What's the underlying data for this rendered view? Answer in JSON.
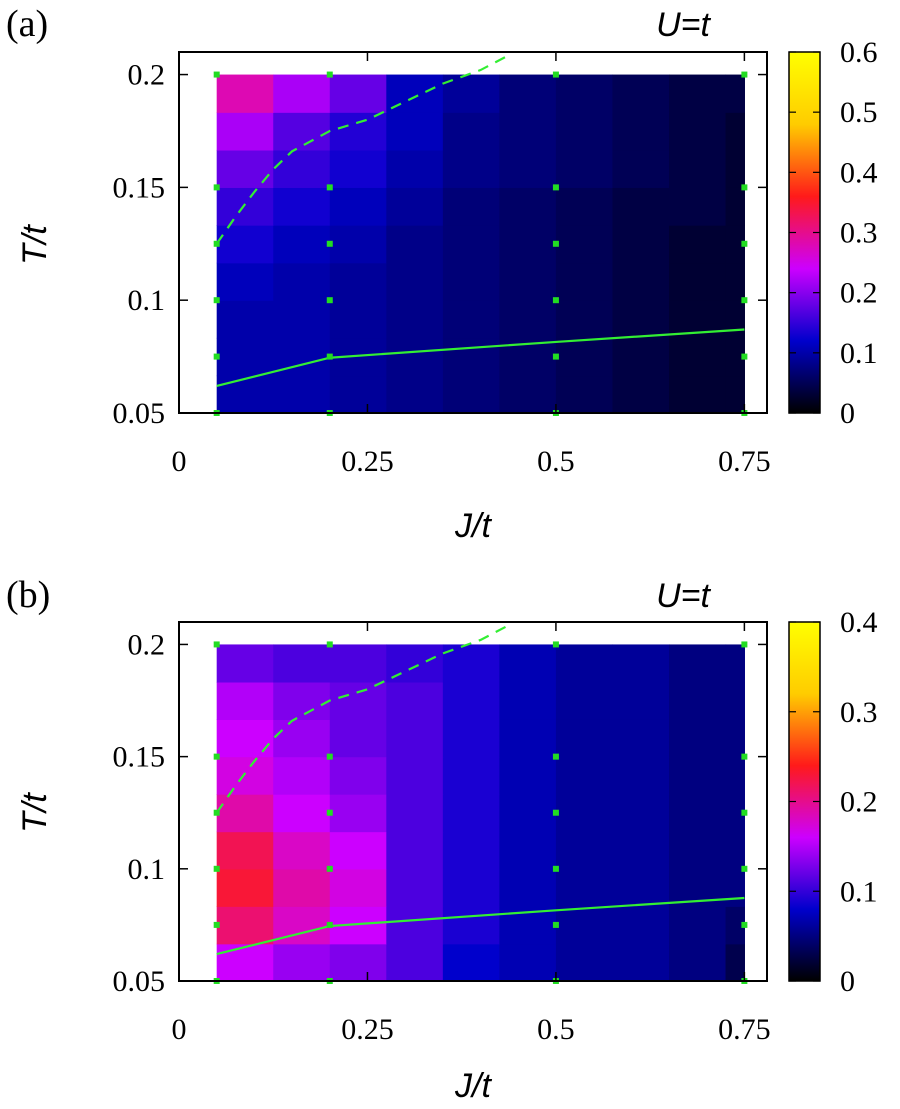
{
  "chart_data": [
    {
      "type": "heatmap",
      "panel_label": "(a)",
      "title": "U=t",
      "xlabel": "J/t",
      "ylabel": "T/t",
      "xlim": [
        0,
        0.78
      ],
      "ylim": [
        0.05,
        0.21
      ],
      "x_ticks": [
        "0",
        "0.25",
        "0.5",
        "0.75"
      ],
      "x_tick_values": [
        0,
        0.25,
        0.5,
        0.75
      ],
      "y_ticks": [
        "0.05",
        "0.1",
        "0.15",
        "0.2"
      ],
      "y_tick_values": [
        0.05,
        0.1,
        0.15,
        0.2
      ],
      "colorbar": {
        "range": [
          0,
          0.6
        ],
        "ticks": [
          "0",
          "0.1",
          "0.2",
          "0.3",
          "0.4",
          "0.5",
          "0.6"
        ],
        "tick_values": [
          0,
          0.1,
          0.2,
          0.3,
          0.4,
          0.5,
          0.6
        ]
      },
      "grid_x_edges": [
        0.05,
        0.125,
        0.2,
        0.275,
        0.35,
        0.425,
        0.5,
        0.575,
        0.65,
        0.725,
        0.75
      ],
      "grid_y_edges": [
        0.05,
        0.0666,
        0.0833,
        0.1,
        0.1166,
        0.1333,
        0.15,
        0.1666,
        0.1833,
        0.2
      ],
      "values": [
        [
          0.1,
          0.1,
          0.09,
          0.08,
          0.07,
          0.06,
          0.05,
          0.04,
          0.03,
          0.03
        ],
        [
          0.1,
          0.1,
          0.09,
          0.08,
          0.07,
          0.06,
          0.05,
          0.04,
          0.03,
          0.03
        ],
        [
          0.1,
          0.1,
          0.09,
          0.08,
          0.07,
          0.06,
          0.05,
          0.04,
          0.03,
          0.03
        ],
        [
          0.11,
          0.1,
          0.09,
          0.08,
          0.07,
          0.06,
          0.05,
          0.04,
          0.03,
          0.03
        ],
        [
          0.13,
          0.11,
          0.1,
          0.08,
          0.07,
          0.06,
          0.05,
          0.04,
          0.03,
          0.03
        ],
        [
          0.15,
          0.13,
          0.11,
          0.09,
          0.07,
          0.06,
          0.05,
          0.04,
          0.04,
          0.03
        ],
        [
          0.18,
          0.15,
          0.13,
          0.1,
          0.08,
          0.07,
          0.06,
          0.05,
          0.04,
          0.03
        ],
        [
          0.22,
          0.17,
          0.14,
          0.11,
          0.08,
          0.07,
          0.06,
          0.05,
          0.04,
          0.03
        ],
        [
          0.28,
          0.22,
          0.18,
          0.11,
          0.09,
          0.07,
          0.06,
          0.05,
          0.04,
          0.04
        ]
      ],
      "sample_points": {
        "x": [
          0.05,
          0.2,
          0.5,
          0.75
        ],
        "y": [
          0.05,
          0.075,
          0.1,
          0.125,
          0.15,
          0.2
        ]
      },
      "lines": [
        {
          "style": "solid",
          "x": [
            0.05,
            0.2,
            0.5,
            0.75
          ],
          "y": [
            0.062,
            0.0745,
            0.0815,
            0.087
          ]
        },
        {
          "style": "dashed",
          "x": [
            0.05,
            0.075,
            0.1,
            0.125,
            0.15,
            0.2,
            0.25,
            0.3,
            0.35,
            0.4,
            0.44
          ],
          "y": [
            0.125,
            0.137,
            0.148,
            0.158,
            0.166,
            0.175,
            0.18,
            0.188,
            0.196,
            0.202,
            0.209
          ]
        }
      ]
    },
    {
      "type": "heatmap",
      "panel_label": "(b)",
      "title": "U=t",
      "xlabel": "J/t",
      "ylabel": "T/t",
      "xlim": [
        0,
        0.78
      ],
      "ylim": [
        0.05,
        0.21
      ],
      "x_ticks": [
        "0",
        "0.25",
        "0.5",
        "0.75"
      ],
      "x_tick_values": [
        0,
        0.25,
        0.5,
        0.75
      ],
      "y_ticks": [
        "0.05",
        "0.1",
        "0.15",
        "0.2"
      ],
      "y_tick_values": [
        0.05,
        0.1,
        0.15,
        0.2
      ],
      "colorbar": {
        "range": [
          0,
          0.4
        ],
        "ticks": [
          "0",
          "0.1",
          "0.2",
          "0.3",
          "0.4"
        ],
        "tick_values": [
          0,
          0.1,
          0.2,
          0.3,
          0.4
        ]
      },
      "grid_x_edges": [
        0.05,
        0.125,
        0.2,
        0.275,
        0.35,
        0.425,
        0.5,
        0.575,
        0.65,
        0.725,
        0.75
      ],
      "grid_y_edges": [
        0.05,
        0.0666,
        0.0833,
        0.1,
        0.1166,
        0.1333,
        0.15,
        0.1666,
        0.1833,
        0.2
      ],
      "values": [
        [
          0.16,
          0.14,
          0.13,
          0.11,
          0.08,
          0.07,
          0.06,
          0.06,
          0.05,
          0.03
        ],
        [
          0.21,
          0.18,
          0.16,
          0.11,
          0.09,
          0.07,
          0.06,
          0.06,
          0.05,
          0.04
        ],
        [
          0.23,
          0.19,
          0.17,
          0.11,
          0.09,
          0.07,
          0.06,
          0.06,
          0.05,
          0.05
        ],
        [
          0.22,
          0.18,
          0.16,
          0.11,
          0.09,
          0.07,
          0.06,
          0.06,
          0.05,
          0.05
        ],
        [
          0.19,
          0.16,
          0.14,
          0.11,
          0.09,
          0.07,
          0.06,
          0.06,
          0.05,
          0.05
        ],
        [
          0.17,
          0.15,
          0.13,
          0.11,
          0.09,
          0.07,
          0.06,
          0.06,
          0.05,
          0.05
        ],
        [
          0.16,
          0.14,
          0.12,
          0.11,
          0.09,
          0.07,
          0.06,
          0.06,
          0.05,
          0.05
        ],
        [
          0.15,
          0.13,
          0.12,
          0.11,
          0.09,
          0.07,
          0.06,
          0.06,
          0.05,
          0.05
        ],
        [
          0.12,
          0.11,
          0.11,
          0.1,
          0.09,
          0.07,
          0.06,
          0.06,
          0.05,
          0.05
        ]
      ],
      "sample_points": {
        "x": [
          0.05,
          0.2,
          0.5,
          0.75
        ],
        "y": [
          0.05,
          0.075,
          0.1,
          0.125,
          0.15,
          0.2
        ]
      },
      "lines": [
        {
          "style": "solid",
          "x": [
            0.05,
            0.2,
            0.5,
            0.75
          ],
          "y": [
            0.062,
            0.0745,
            0.0815,
            0.087
          ]
        },
        {
          "style": "dashed",
          "x": [
            0.05,
            0.075,
            0.1,
            0.125,
            0.15,
            0.2,
            0.25,
            0.3,
            0.35,
            0.4,
            0.44
          ],
          "y": [
            0.125,
            0.137,
            0.148,
            0.158,
            0.166,
            0.175,
            0.18,
            0.188,
            0.196,
            0.202,
            0.209
          ]
        }
      ]
    }
  ],
  "colors": {
    "marker": "#22dd22",
    "line": "#33ee33",
    "frame": "#000000",
    "colormap": [
      "#000000",
      "#0000cc",
      "#cc00ff",
      "#ff1a1a",
      "#ffcc00",
      "#ffff00"
    ]
  }
}
